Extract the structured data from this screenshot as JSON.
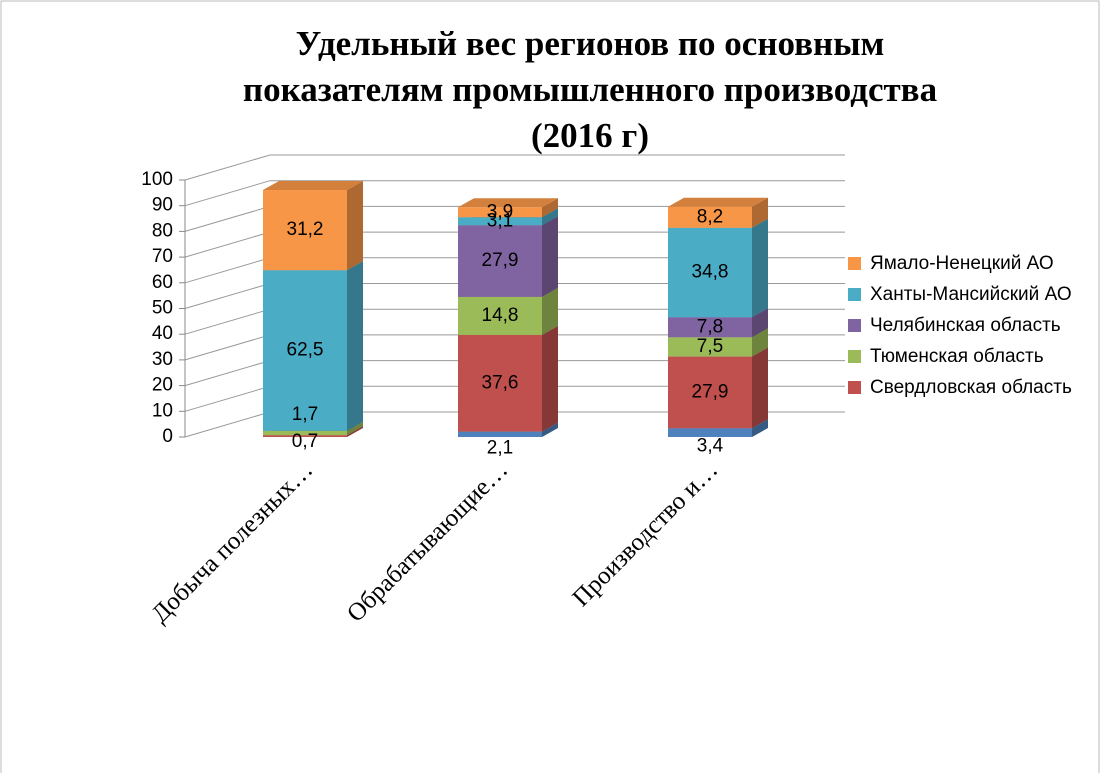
{
  "chart_data": {
    "type": "bar3d_stacked",
    "title": [
      "Удельный вес регионов по основным",
      "показателям промышленного производства",
      "(2016 г)"
    ],
    "categories": [
      "Добыча полезных…",
      "Обрабатывающие…",
      "Производство и…"
    ],
    "series": [
      {
        "color": "#4f81bd",
        "values": [
          null,
          2.1,
          3.4
        ],
        "value_labels": [
          null,
          "2,1",
          "3,4"
        ]
      },
      {
        "name": "Свердловская область",
        "color": "#c0504d",
        "values": [
          0.7,
          37.6,
          27.9
        ],
        "value_labels": [
          "0,7",
          "37,6",
          "27,9"
        ]
      },
      {
        "name": "Тюменская область",
        "color": "#9bbb59",
        "values": [
          1.7,
          14.8,
          7.5
        ],
        "value_labels": [
          "1,7",
          "14,8",
          "7,5"
        ]
      },
      {
        "name": "Челябинская область",
        "color": "#8064a2",
        "values": [
          null,
          27.9,
          7.8
        ],
        "value_labels": [
          null,
          "27,9",
          "7,8"
        ]
      },
      {
        "name": "Ханты-Мансийский АО",
        "color": "#4bacc6",
        "values": [
          62.5,
          3.1,
          34.8
        ],
        "value_labels": [
          "62,5",
          "3,1",
          "34,8"
        ]
      },
      {
        "name": "Ямало-Ненецкий АО",
        "color": "#f79646",
        "values": [
          31.2,
          3.9,
          8.2
        ],
        "value_labels": [
          "31,2",
          "3,9",
          "8,2"
        ]
      }
    ],
    "ylim": [
      0,
      100
    ],
    "yticks": [
      0,
      10,
      20,
      30,
      40,
      50,
      60,
      70,
      80,
      90,
      100
    ],
    "grid": true,
    "legend": "right"
  }
}
